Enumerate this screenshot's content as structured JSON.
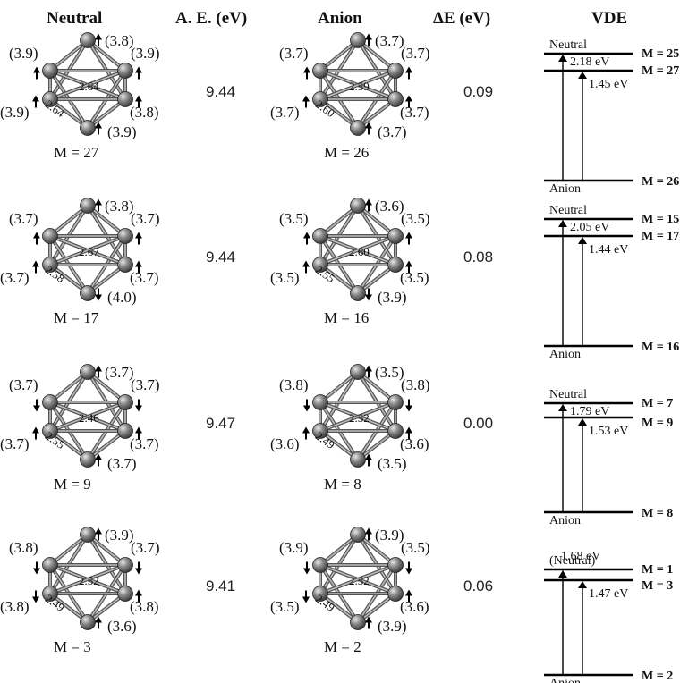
{
  "headers": {
    "neutral": "Neutral",
    "ae": "A. E. (eV)",
    "anion": "Anion",
    "de": "ΔE (eV)",
    "vde": "VDE"
  },
  "rows": [
    {
      "neutral": {
        "m_label": "M = 27",
        "moments": [
          "(3.8)",
          "(3.9)",
          "(3.9)",
          "(3.9)",
          "(3.8)",
          "(3.9)"
        ],
        "spins": [
          "up",
          "up",
          "up",
          "up",
          "up",
          "up"
        ],
        "d_center": "2.64",
        "d_edge": "2.64"
      },
      "ae": "9.44",
      "anion": {
        "m_label": "M = 26",
        "moments": [
          "(3.7)",
          "(3.7)",
          "(3.7)",
          "(3.7)",
          "(3.7)",
          "(3.7)"
        ],
        "spins": [
          "up",
          "up",
          "up",
          "up",
          "up",
          "up"
        ],
        "d_center": "2.59",
        "d_edge": "2.60"
      },
      "de": "0.09",
      "vde": {
        "top_label": "Neutral",
        "e_top": "2.18 eV",
        "e_mid": "1.45 eV",
        "bottom_label": "Anion",
        "m_top": "M = 25",
        "m_mid": "M = 27",
        "m_bot": "M = 26"
      }
    },
    {
      "neutral": {
        "m_label": "M = 17",
        "moments": [
          "(3.8)",
          "(3.7)",
          "(3.7)",
          "(3.7)",
          "(3.7)",
          "(4.0)"
        ],
        "spins": [
          "up",
          "up",
          "up",
          "up",
          "up",
          "down"
        ],
        "d_center": "2.67",
        "d_edge": "2.58"
      },
      "ae": "9.44",
      "anion": {
        "m_label": "M = 16",
        "moments": [
          "(3.6)",
          "(3.5)",
          "(3.5)",
          "(3.5)",
          "(3.5)",
          "(3.9)"
        ],
        "spins": [
          "up",
          "up",
          "up",
          "up",
          "up",
          "down"
        ],
        "d_center": "2.60",
        "d_edge": "2.55"
      },
      "de": "0.08",
      "vde": {
        "top_label": "Neutral",
        "e_top": "2.05 eV",
        "e_mid": "1.44 eV",
        "bottom_label": "Anion",
        "m_top": "M = 15",
        "m_mid": "M = 17",
        "m_bot": "M = 16"
      }
    },
    {
      "neutral": {
        "m_label": "M = 9",
        "moments": [
          "(3.7)",
          "(3.7)",
          "(3.7)",
          "(3.7)",
          "(3.7)",
          "(3.7)"
        ],
        "spins": [
          "up",
          "down",
          "down",
          "up",
          "up",
          "up"
        ],
        "d_center": "2.46",
        "d_edge": "2.55"
      },
      "ae": "9.47",
      "anion": {
        "m_label": "M = 8",
        "moments": [
          "(3.5)",
          "(3.8)",
          "(3.8)",
          "(3.6)",
          "(3.6)",
          "(3.5)"
        ],
        "spins": [
          "up",
          "down",
          "down",
          "up",
          "up",
          "up"
        ],
        "d_center": "2.52",
        "d_edge": "2.49"
      },
      "de": "0.00",
      "vde": {
        "top_label": "Neutral",
        "e_top": "1.79 eV",
        "e_mid": "1.53 eV",
        "bottom_label": "Anion",
        "m_top": "M = 7",
        "m_mid": "M = 9",
        "m_bot": "M = 8"
      }
    },
    {
      "neutral": {
        "m_label": "M = 3",
        "moments": [
          "(3.9)",
          "(3.8)",
          "(3.7)",
          "(3.8)",
          "(3.8)",
          "(3.6)"
        ],
        "spins": [
          "up",
          "down",
          "down",
          "down",
          "up",
          "up"
        ],
        "d_center": "2.52",
        "d_edge": "2.49"
      },
      "ae": "9.41",
      "anion": {
        "m_label": "M = 2",
        "moments": [
          "(3.9)",
          "(3.9)",
          "(3.5)",
          "(3.5)",
          "(3.6)",
          "(3.9)"
        ],
        "spins": [
          "up",
          "down",
          "down",
          "down",
          "up",
          "up"
        ],
        "d_center": "2.52",
        "d_edge": "2.49"
      },
      "de": "0.06",
      "vde": {
        "top_label": "(Neutral)",
        "e_top": "1.68 eV",
        "e_mid": "1.47 eV",
        "bottom_label": "Anion",
        "m_top": "M = 1",
        "m_mid": "M = 3",
        "m_bot": "M = 2"
      }
    }
  ]
}
